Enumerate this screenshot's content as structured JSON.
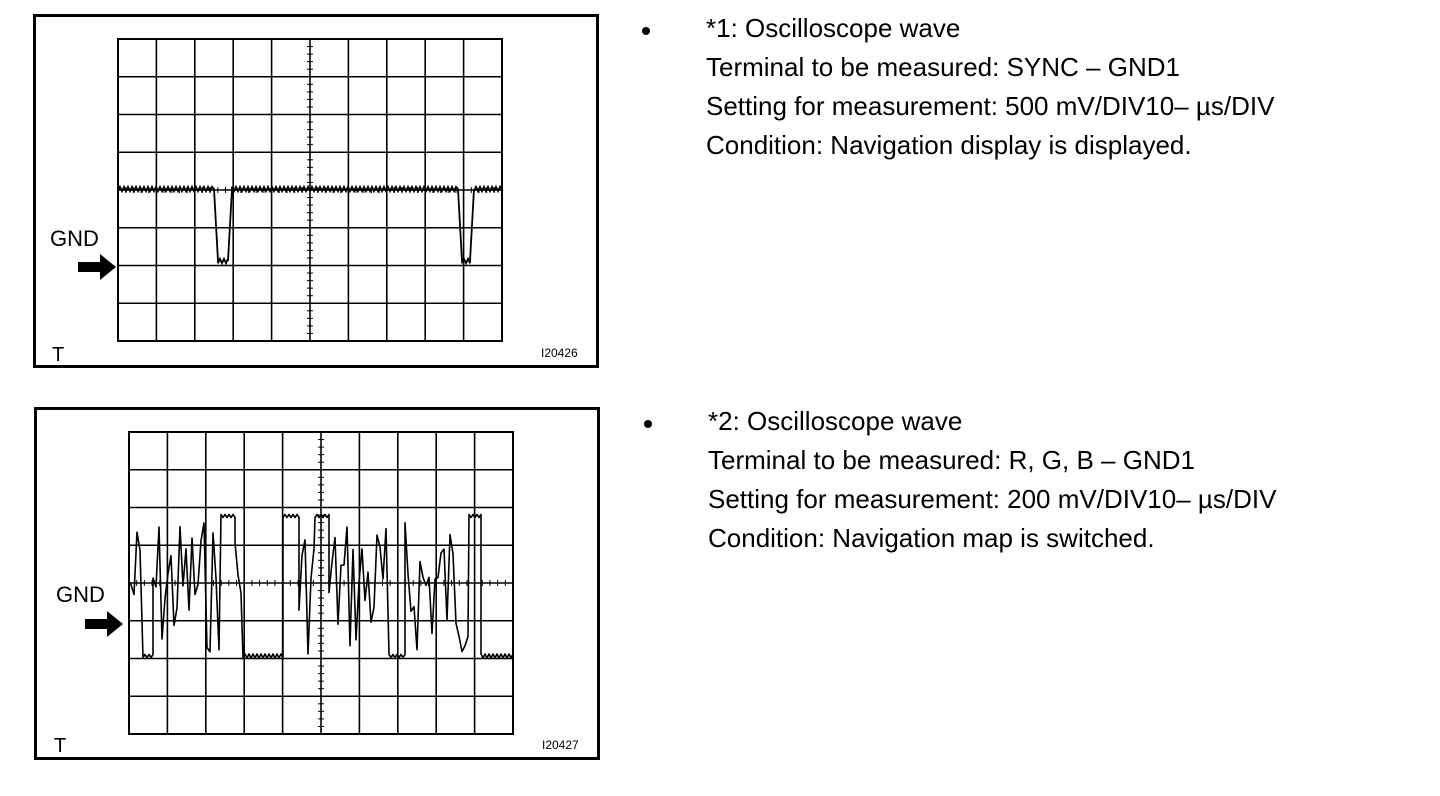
{
  "figures": [
    {
      "gnd_label": "GND",
      "corner_label": "T",
      "figure_id": "I20426",
      "info": {
        "title": "*1: Oscilloscope wave",
        "terminal": "Terminal to be measured: SYNC – GND1",
        "setting": "Setting for measurement: 500 mV/DIV10– µs/DIV",
        "condition": "Condition: Navigation display is displayed."
      }
    },
    {
      "gnd_label": "GND",
      "corner_label": "T",
      "figure_id": "I20427",
      "info": {
        "title": "*2: Oscilloscope wave",
        "terminal": "Terminal to be measured: R, G, B – GND1",
        "setting": "Setting for measurement: 200 mV/DIV10– µs/DIV",
        "condition": "Condition: Navigation map is switched."
      }
    }
  ],
  "colors": {
    "ink": "#000000",
    "paper": "#ffffff"
  }
}
